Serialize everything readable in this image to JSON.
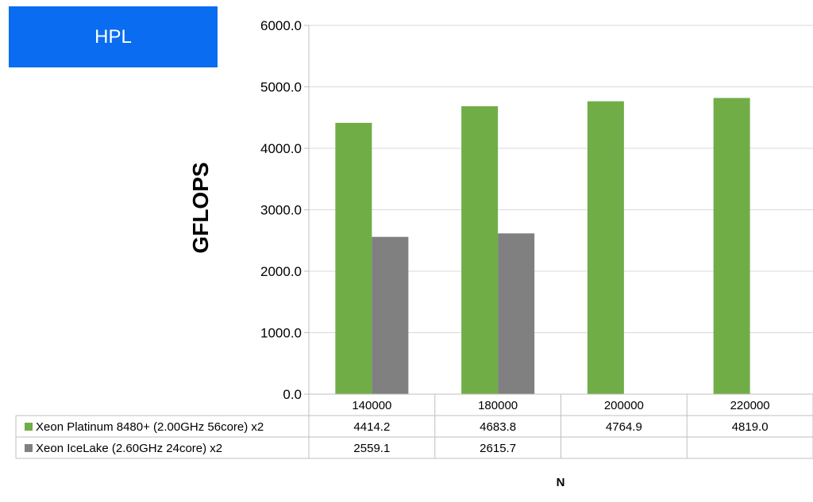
{
  "chart_data": {
    "type": "bar",
    "title": "HPL",
    "ylabel": "GFLOPS",
    "xlabel": "N",
    "ylim": [
      0,
      6000
    ],
    "y_ticks": [
      "0.0",
      "1000.0",
      "2000.0",
      "3000.0",
      "4000.0",
      "5000.0",
      "6000.0"
    ],
    "categories": [
      "140000",
      "180000",
      "200000",
      "220000"
    ],
    "grid": true,
    "legend": "data-table",
    "series": [
      {
        "name": "Xeon Platinum 8480+ (2.00GHz 56core) x2",
        "color": "#70ad47",
        "values": [
          4414.2,
          4683.8,
          4764.9,
          4819.0
        ],
        "labels": [
          "4414.2",
          "4683.8",
          "4764.9",
          "4819.0"
        ]
      },
      {
        "name": "Xeon IceLake (2.60GHz 24core) x2",
        "color": "#808080",
        "values": [
          2559.1,
          2615.7,
          null,
          null
        ],
        "labels": [
          "2559.1",
          "2615.7",
          "",
          ""
        ]
      }
    ]
  }
}
